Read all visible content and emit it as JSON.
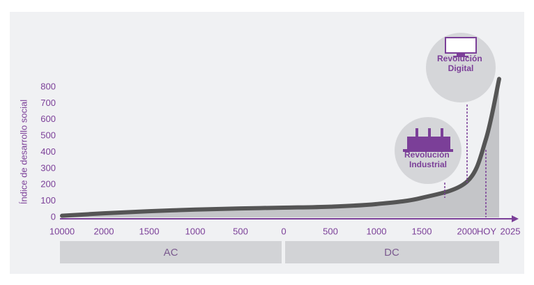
{
  "chart_data": {
    "type": "area",
    "y_label": "Índice de desarrollo social",
    "categories": [
      "10000",
      "2000",
      "1500",
      "1000",
      "500",
      "0",
      "500",
      "1000",
      "1500",
      "2000",
      "HOY",
      "2025"
    ],
    "series": [
      {
        "color": "#555555",
        "fill": "#c4c5c8",
        "values": [
          10,
          25,
          38,
          48,
          55,
          60,
          66,
          82,
          120,
          220,
          480,
          850
        ]
      }
    ],
    "ylim": [
      0,
      800
    ],
    "yticks": [
      0,
      100,
      200,
      300,
      400,
      500,
      600,
      700,
      800
    ],
    "eras": [
      "AC",
      "DC"
    ],
    "annotations": [
      {
        "label": "Revolución Industrial"
      },
      {
        "label": "Revolución Digital"
      }
    ],
    "axis_color": "#7b3f98"
  }
}
